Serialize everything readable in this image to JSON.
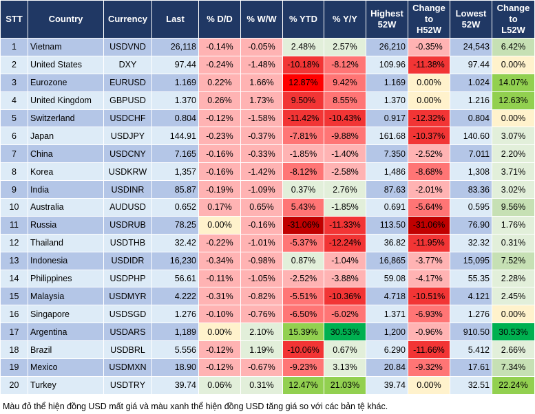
{
  "headers": [
    "STT",
    "Country",
    "Currency",
    "Last",
    "% D/D",
    "% W/W",
    "% YTD",
    "% Y/Y",
    "Highest 52W",
    "Change to H52W",
    "Lowest 52W",
    "Change to L52W"
  ],
  "colors": {
    "p": "#FFB3B3",
    "m": "#FF7575",
    "s": "#F23535",
    "r": "#FF0000",
    "d": "#C00000",
    "g": "#E2EFDA",
    "G": "#C6E0B4",
    "b": "#92D050",
    "B": "#00B050",
    "y": "#FFF2CC",
    "header": "#203864",
    "row_odd": "#B4C6E7",
    "row_even": "#DDEBF7"
  },
  "rows": [
    {
      "stt": "1",
      "country": "Vietnam",
      "currency": "USDVND",
      "last": "26,118",
      "dd": "-0.14%",
      "ww": "-0.05%",
      "ytd": "2.48%",
      "yy": "2.57%",
      "h52": "26,210",
      "ch": "-0.35%",
      "l52": "24,543",
      "cl": "6.42%",
      "heat": [
        "p",
        "p",
        "g",
        "g",
        "p",
        "G"
      ]
    },
    {
      "stt": "2",
      "country": "United States",
      "currency": "DXY",
      "last": "97.44",
      "dd": "-0.24%",
      "ww": "-1.48%",
      "ytd": "-10.18%",
      "yy": "-8.12%",
      "h52": "109.96",
      "ch": "-11.38%",
      "l52": "97.44",
      "cl": "0.00%",
      "heat": [
        "p",
        "p",
        "s",
        "m",
        "s",
        "y"
      ]
    },
    {
      "stt": "3",
      "country": "Eurozone",
      "currency": "EURUSD",
      "last": "1.169",
      "dd": "0.22%",
      "ww": "1.66%",
      "ytd": "12.87%",
      "yy": "9.42%",
      "h52": "1.169",
      "ch": "0.00%",
      "l52": "1.024",
      "cl": "14.07%",
      "heat": [
        "p",
        "p",
        "r",
        "m",
        "y",
        "b"
      ]
    },
    {
      "stt": "4",
      "country": "United Kingdom",
      "currency": "GBPUSD",
      "last": "1.370",
      "dd": "0.26%",
      "ww": "1.73%",
      "ytd": "9.50%",
      "yy": "8.55%",
      "h52": "1.370",
      "ch": "0.00%",
      "l52": "1.216",
      "cl": "12.63%",
      "heat": [
        "p",
        "p",
        "s",
        "m",
        "y",
        "b"
      ]
    },
    {
      "stt": "5",
      "country": "Switzerland",
      "currency": "USDCHF",
      "last": "0.804",
      "dd": "-0.12%",
      "ww": "-1.58%",
      "ytd": "-11.42%",
      "yy": "-10.43%",
      "h52": "0.917",
      "ch": "-12.32%",
      "l52": "0.804",
      "cl": "0.00%",
      "heat": [
        "p",
        "p",
        "s",
        "s",
        "s",
        "y"
      ]
    },
    {
      "stt": "6",
      "country": "Japan",
      "currency": "USDJPY",
      "last": "144.91",
      "dd": "-0.23%",
      "ww": "-0.37%",
      "ytd": "-7.81%",
      "yy": "-9.88%",
      "h52": "161.68",
      "ch": "-10.37%",
      "l52": "140.60",
      "cl": "3.07%",
      "heat": [
        "p",
        "p",
        "m",
        "m",
        "s",
        "g"
      ]
    },
    {
      "stt": "7",
      "country": "China",
      "currency": "USDCNY",
      "last": "7.165",
      "dd": "-0.16%",
      "ww": "-0.33%",
      "ytd": "-1.85%",
      "yy": "-1.40%",
      "h52": "7.350",
      "ch": "-2.52%",
      "l52": "7.011",
      "cl": "2.20%",
      "heat": [
        "p",
        "p",
        "p",
        "p",
        "p",
        "g"
      ]
    },
    {
      "stt": "8",
      "country": "Korea",
      "currency": "USDKRW",
      "last": "1,357",
      "dd": "-0.16%",
      "ww": "-1.42%",
      "ytd": "-8.12%",
      "yy": "-2.58%",
      "h52": "1,486",
      "ch": "-8.68%",
      "l52": "1,308",
      "cl": "3.71%",
      "heat": [
        "p",
        "p",
        "m",
        "p",
        "m",
        "g"
      ]
    },
    {
      "stt": "9",
      "country": "India",
      "currency": "USDINR",
      "last": "85.87",
      "dd": "-0.19%",
      "ww": "-1.09%",
      "ytd": "0.37%",
      "yy": "2.76%",
      "h52": "87.63",
      "ch": "-2.01%",
      "l52": "83.36",
      "cl": "3.02%",
      "heat": [
        "p",
        "p",
        "g",
        "g",
        "p",
        "g"
      ]
    },
    {
      "stt": "10",
      "country": "Australia",
      "currency": "AUDUSD",
      "last": "0.652",
      "dd": "0.17%",
      "ww": "0.65%",
      "ytd": "5.43%",
      "yy": "-1.85%",
      "h52": "0.691",
      "ch": "-5.64%",
      "l52": "0.595",
      "cl": "9.56%",
      "heat": [
        "p",
        "p",
        "m",
        "g",
        "m",
        "G"
      ]
    },
    {
      "stt": "11",
      "country": "Russia",
      "currency": "USDRUB",
      "last": "78.25",
      "dd": "0.00%",
      "ww": "-0.16%",
      "ytd": "-31.06%",
      "yy": "-11.33%",
      "h52": "113.50",
      "ch": "-31.06%",
      "l52": "76.90",
      "cl": "1.76%",
      "heat": [
        "y",
        "p",
        "d",
        "s",
        "d",
        "g"
      ]
    },
    {
      "stt": "12",
      "country": "Thailand",
      "currency": "USDTHB",
      "last": "32.42",
      "dd": "-0.22%",
      "ww": "-1.01%",
      "ytd": "-5.37%",
      "yy": "-12.24%",
      "h52": "36.82",
      "ch": "-11.95%",
      "l52": "32.32",
      "cl": "0.31%",
      "heat": [
        "p",
        "p",
        "m",
        "s",
        "s",
        "g"
      ]
    },
    {
      "stt": "13",
      "country": "Indonesia",
      "currency": "USDIDR",
      "last": "16,230",
      "dd": "-0.34%",
      "ww": "-0.98%",
      "ytd": "0.87%",
      "yy": "-1.04%",
      "h52": "16,865",
      "ch": "-3.77%",
      "l52": "15,095",
      "cl": "7.52%",
      "heat": [
        "p",
        "p",
        "g",
        "p",
        "p",
        "G"
      ]
    },
    {
      "stt": "14",
      "country": "Philippines",
      "currency": "USDPHP",
      "last": "56.61",
      "dd": "-0.11%",
      "ww": "-1.05%",
      "ytd": "-2.52%",
      "yy": "-3.88%",
      "h52": "59.08",
      "ch": "-4.17%",
      "l52": "55.35",
      "cl": "2.28%",
      "heat": [
        "p",
        "p",
        "p",
        "p",
        "p",
        "g"
      ]
    },
    {
      "stt": "15",
      "country": "Malaysia",
      "currency": "USDMYR",
      "last": "4.222",
      "dd": "-0.31%",
      "ww": "-0.82%",
      "ytd": "-5.51%",
      "yy": "-10.36%",
      "h52": "4.718",
      "ch": "-10.51%",
      "l52": "4.121",
      "cl": "2.45%",
      "heat": [
        "p",
        "p",
        "m",
        "s",
        "s",
        "g"
      ]
    },
    {
      "stt": "16",
      "country": "Singapore",
      "currency": "USDSGD",
      "last": "1.276",
      "dd": "-0.10%",
      "ww": "-0.76%",
      "ytd": "-6.50%",
      "yy": "-6.02%",
      "h52": "1.371",
      "ch": "-6.93%",
      "l52": "1.276",
      "cl": "0.00%",
      "heat": [
        "p",
        "p",
        "m",
        "m",
        "m",
        "y"
      ]
    },
    {
      "stt": "17",
      "country": "Argentina",
      "currency": "USDARS",
      "last": "1,189",
      "dd": "0.00%",
      "ww": "2.10%",
      "ytd": "15.39%",
      "yy": "30.53%",
      "h52": "1,200",
      "ch": "-0.96%",
      "l52": "910.50",
      "cl": "30.53%",
      "heat": [
        "y",
        "g",
        "b",
        "B",
        "p",
        "B"
      ]
    },
    {
      "stt": "18",
      "country": "Brazil",
      "currency": "USDBRL",
      "last": "5.556",
      "dd": "-0.12%",
      "ww": "1.19%",
      "ytd": "-10.06%",
      "yy": "0.67%",
      "h52": "6.290",
      "ch": "-11.66%",
      "l52": "5.412",
      "cl": "2.66%",
      "heat": [
        "p",
        "g",
        "s",
        "g",
        "s",
        "g"
      ]
    },
    {
      "stt": "19",
      "country": "Mexico",
      "currency": "USDMXN",
      "last": "18.90",
      "dd": "-0.12%",
      "ww": "-0.67%",
      "ytd": "-9.23%",
      "yy": "3.13%",
      "h52": "20.84",
      "ch": "-9.32%",
      "l52": "17.61",
      "cl": "7.34%",
      "heat": [
        "p",
        "p",
        "m",
        "g",
        "m",
        "G"
      ]
    },
    {
      "stt": "20",
      "country": "Turkey",
      "currency": "USDTRY",
      "last": "39.74",
      "dd": "0.06%",
      "ww": "0.31%",
      "ytd": "12.47%",
      "yy": "21.03%",
      "h52": "39.74",
      "ch": "0.00%",
      "l52": "32.51",
      "cl": "22.24%",
      "heat": [
        "g",
        "g",
        "b",
        "b",
        "y",
        "b"
      ]
    }
  ],
  "footnote": "Màu đỏ thể hiện đồng USD mất giá và màu xanh thể hiện đồng USD tăng giá so với các bản tệ khác."
}
